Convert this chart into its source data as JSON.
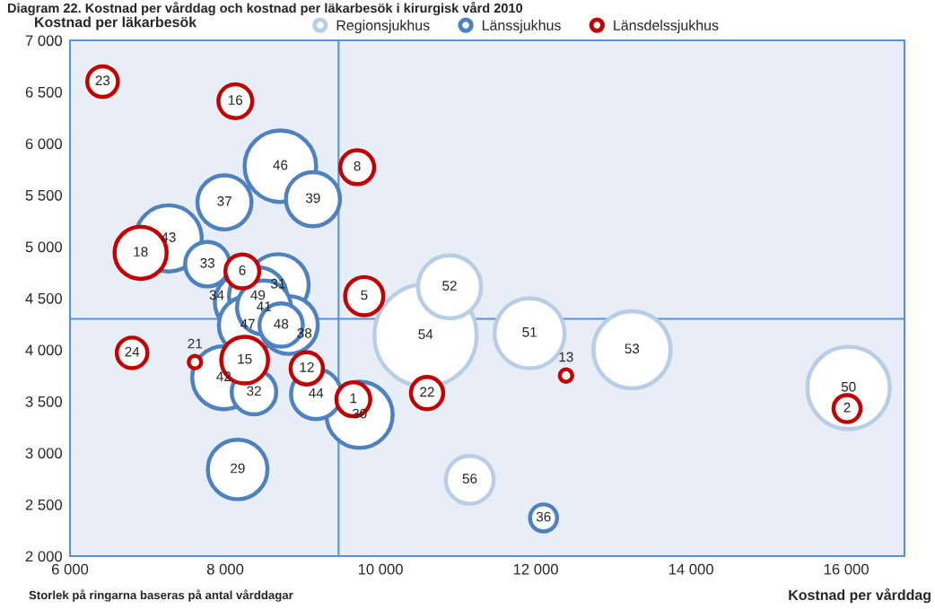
{
  "chart_data": {
    "type": "bubble",
    "title": "Diagram 22. Kostnad per vårddag och kostnad per läkarbesök i kirurgisk vård 2010",
    "xlabel": "Kostnad per vårddag",
    "ylabel": "Kostnad per läkarbesök",
    "xlim": [
      6000,
      16750
    ],
    "ylim": [
      2000,
      7000
    ],
    "xticks": [
      {
        "value": 6000,
        "label": "6 000"
      },
      {
        "value": 8000,
        "label": "8 000"
      },
      {
        "value": 10000,
        "label": "10 000"
      },
      {
        "value": 12000,
        "label": "12 000"
      },
      {
        "value": 14000,
        "label": "14 000"
      },
      {
        "value": 16000,
        "label": "16 000"
      }
    ],
    "yticks": [
      {
        "value": 2000,
        "label": "2 000"
      },
      {
        "value": 2500,
        "label": "2 500"
      },
      {
        "value": 3000,
        "label": "3 000"
      },
      {
        "value": 3500,
        "label": "3 500"
      },
      {
        "value": 4000,
        "label": "4 000"
      },
      {
        "value": 4500,
        "label": "4 500"
      },
      {
        "value": 5000,
        "label": "5 000"
      },
      {
        "value": 5500,
        "label": "5 500"
      },
      {
        "value": 6000,
        "label": "6 000"
      },
      {
        "value": 6500,
        "label": "6 500"
      },
      {
        "value": 7000,
        "label": "7 000"
      }
    ],
    "grid": false,
    "legend": "top",
    "marker": "circle",
    "ref_lines": [
      {
        "axis": "x",
        "value": 9460,
        "color": "#5b8fd6"
      },
      {
        "axis": "y",
        "value": 4300,
        "color": "#5b8fd6"
      }
    ],
    "series": [
      {
        "name": "Regionsjukhus",
        "color": "#b9cde5",
        "x": [
          10890,
          10580,
          11920,
          13240,
          16030,
          11150
        ],
        "values": [
          4610,
          4140,
          4160,
          4000,
          3630,
          2740
        ],
        "sizes": [
          0.38,
          1,
          0.47,
          0.57,
          0.65,
          0.22
        ]
      },
      {
        "name": "Länssjukhus",
        "color": "#4f81bd",
        "x": [
          8710,
          9130,
          7990,
          7270,
          7770,
          8680,
          8250,
          8420,
          8500,
          8290,
          8720,
          8820,
          7980,
          8370,
          9170,
          9730,
          8160,
          12100
        ],
        "values": [
          5780,
          5460,
          5430,
          5080,
          4830,
          4630,
          4460,
          4520,
          4410,
          4240,
          4240,
          4240,
          3730,
          3590,
          3570,
          3370,
          2840,
          2370
        ],
        "sizes": [
          0.49,
          0.28,
          0.28,
          0.42,
          0.19,
          0.36,
          0.34,
          0.32,
          0.28,
          0.32,
          0.18,
          0.32,
          0.38,
          0.19,
          0.24,
          0.42,
          0.34,
          0.07
        ]
      },
      {
        "name": "Länsdelssjukhus",
        "color": "#c00000",
        "x": [
          6420,
          8130,
          9700,
          6910,
          8220,
          9790,
          6800,
          7610,
          8250,
          9050,
          9650,
          10600,
          12390,
          16010
        ],
        "values": [
          6600,
          6410,
          5770,
          4940,
          4760,
          4520,
          3970,
          3880,
          3900,
          3820,
          3520,
          3580,
          3750,
          3430
        ],
        "sizes": [
          0.09,
          0.11,
          0.11,
          0.26,
          0.11,
          0.14,
          0.09,
          0.015,
          0.21,
          0.1,
          0.11,
          0.1,
          0.015,
          0.07
        ]
      }
    ],
    "annotations": [
      "Storlek på ringarna baseras på antal vårddagar",
      {
        "text": "52",
        "x": 10890,
        "y": 4610
      },
      {
        "text": "54",
        "x": 10580,
        "y": 4140
      },
      {
        "text": "51",
        "x": 11920,
        "y": 4160
      },
      {
        "text": "53",
        "x": 13240,
        "y": 4000
      },
      {
        "text": "50",
        "x": 16030,
        "y": 3630
      },
      {
        "text": "56",
        "x": 11150,
        "y": 2740
      },
      {
        "text": "46",
        "x": 8710,
        "y": 5780
      },
      {
        "text": "39",
        "x": 9130,
        "y": 5460
      },
      {
        "text": "37",
        "x": 7990,
        "y": 5430
      },
      {
        "text": "43",
        "x": 7270,
        "y": 5080
      },
      {
        "text": "33",
        "x": 7770,
        "y": 4830
      },
      {
        "text": "31",
        "x": 8680,
        "y": 4630
      },
      {
        "text": "34",
        "x": 7890,
        "y": 4520
      },
      {
        "text": "49",
        "x": 8420,
        "y": 4520
      },
      {
        "text": "41",
        "x": 8500,
        "y": 4410
      },
      {
        "text": "47",
        "x": 8290,
        "y": 4240
      },
      {
        "text": "48",
        "x": 8720,
        "y": 4240
      },
      {
        "text": "38",
        "x": 9020,
        "y": 4150
      },
      {
        "text": "42",
        "x": 7980,
        "y": 3730
      },
      {
        "text": "32",
        "x": 8370,
        "y": 3590
      },
      {
        "text": "44",
        "x": 9170,
        "y": 3570
      },
      {
        "text": "30",
        "x": 9730,
        "y": 3370
      },
      {
        "text": "29",
        "x": 8160,
        "y": 2840
      },
      {
        "text": "36",
        "x": 12100,
        "y": 2370
      },
      {
        "text": "23",
        "x": 6420,
        "y": 6600
      },
      {
        "text": "16",
        "x": 8130,
        "y": 6410
      },
      {
        "text": "8",
        "x": 9700,
        "y": 5770
      },
      {
        "text": "18",
        "x": 6910,
        "y": 4940
      },
      {
        "text": "6",
        "x": 8220,
        "y": 4760
      },
      {
        "text": "5",
        "x": 9790,
        "y": 4520
      },
      {
        "text": "24",
        "x": 6800,
        "y": 3970
      },
      {
        "text": "21",
        "x": 7610,
        "y": 3880
      },
      {
        "text": "15",
        "x": 8250,
        "y": 3900
      },
      {
        "text": "12",
        "x": 9050,
        "y": 3820
      },
      {
        "text": "1",
        "x": 9650,
        "y": 3520
      },
      {
        "text": "22",
        "x": 10600,
        "y": 3580
      },
      {
        "text": "13",
        "x": 12390,
        "y": 3750
      },
      {
        "text": "2",
        "x": 16010,
        "y": 3430
      }
    ]
  }
}
